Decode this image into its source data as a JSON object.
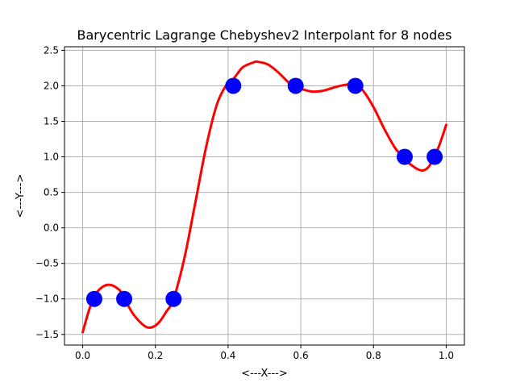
{
  "chart_data": {
    "type": "line",
    "title": "Barycentric Lagrange Chebyshev2 Interpolant for 8 nodes",
    "xlabel": "<---X--->",
    "ylabel": "<---Y--->",
    "xlim": [
      -0.05,
      1.05
    ],
    "ylim": [
      -1.65,
      2.55
    ],
    "xticks": [
      0.0,
      0.2,
      0.4,
      0.6,
      0.8,
      1.0
    ],
    "xtick_labels": [
      "0.0",
      "0.2",
      "0.4",
      "0.6",
      "0.8",
      "1.0"
    ],
    "yticks": [
      -1.5,
      -1.0,
      -0.5,
      0.0,
      0.5,
      1.0,
      1.5,
      2.0,
      2.5
    ],
    "ytick_labels": [
      "−1.5",
      "−1.0",
      "−0.5",
      "0.0",
      "0.5",
      "1.0",
      "1.5",
      "2.0",
      "2.5"
    ],
    "grid": true,
    "series": [
      {
        "kind": "line",
        "color": "#ff0000",
        "x": [
          0.0,
          0.02,
          0.04,
          0.07,
          0.1,
          0.115,
          0.14,
          0.17,
          0.19,
          0.21,
          0.23,
          0.25,
          0.28,
          0.31,
          0.34,
          0.37,
          0.4,
          0.415,
          0.44,
          0.47,
          0.48,
          0.51,
          0.54,
          0.57,
          0.585,
          0.6,
          0.63,
          0.66,
          0.7,
          0.73,
          0.75,
          0.77,
          0.8,
          0.83,
          0.86,
          0.883,
          0.9,
          0.93,
          0.95,
          0.967,
          0.98,
          1.0
        ],
        "y": [
          -1.47,
          -1.12,
          -0.9,
          -0.8,
          -0.87,
          -1.0,
          -1.22,
          -1.38,
          -1.4,
          -1.33,
          -1.18,
          -1.0,
          -0.42,
          0.36,
          1.15,
          1.75,
          2.05,
          2.1,
          2.26,
          2.33,
          2.34,
          2.3,
          2.18,
          2.03,
          2.0,
          1.96,
          1.92,
          1.93,
          1.99,
          2.02,
          2.0,
          1.94,
          1.7,
          1.39,
          1.12,
          1.0,
          0.9,
          0.81,
          0.85,
          1.0,
          1.15,
          1.45
        ]
      },
      {
        "kind": "scatter",
        "color": "#0000ff",
        "x": [
          0.0319,
          0.1142,
          0.25,
          0.4142,
          0.5858,
          0.75,
          0.8858,
          0.9681
        ],
        "y": [
          -1.0,
          -1.0,
          -1.0,
          2.0,
          2.0,
          2.0,
          1.0,
          1.0
        ]
      }
    ]
  }
}
